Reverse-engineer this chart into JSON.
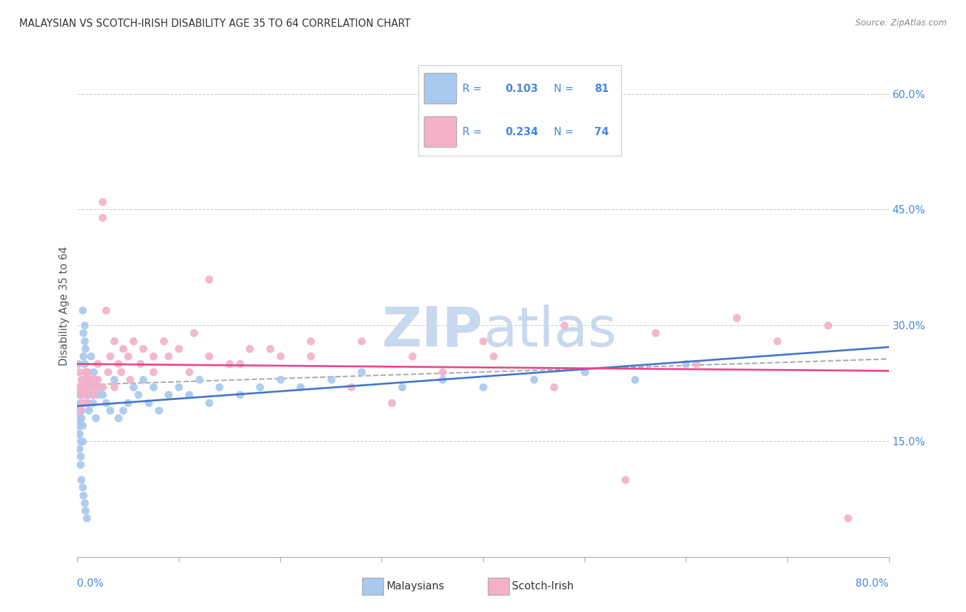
{
  "title": "MALAYSIAN VS SCOTCH-IRISH DISABILITY AGE 35 TO 64 CORRELATION CHART",
  "source": "Source: ZipAtlas.com",
  "ylabel": "Disability Age 35 to 64",
  "right_yticks": [
    0.15,
    0.3,
    0.45,
    0.6
  ],
  "right_yticklabels": [
    "15.0%",
    "30.0%",
    "45.0%",
    "60.0%"
  ],
  "malaysian_R": 0.103,
  "malaysian_N": 81,
  "scotch_irish_R": 0.234,
  "scotch_irish_N": 74,
  "blue_color": "#A8C8EE",
  "pink_color": "#F4B0C8",
  "blue_line_color": "#4477CC",
  "pink_line_color": "#EE4488",
  "dashed_line_color": "#AAAAAA",
  "legend_text_color": "#4488DD",
  "watermark_color": "#C8D8EE",
  "xmin": 0.0,
  "xmax": 0.8,
  "ymin": 0.0,
  "ymax": 0.65,
  "malaysian_x": [
    0.001,
    0.001,
    0.001,
    0.001,
    0.002,
    0.002,
    0.002,
    0.002,
    0.003,
    0.003,
    0.003,
    0.003,
    0.003,
    0.004,
    0.004,
    0.004,
    0.005,
    0.005,
    0.005,
    0.006,
    0.006,
    0.007,
    0.007,
    0.007,
    0.008,
    0.008,
    0.009,
    0.009,
    0.01,
    0.01,
    0.01,
    0.011,
    0.011,
    0.012,
    0.013,
    0.014,
    0.015,
    0.016,
    0.018,
    0.02,
    0.022,
    0.025,
    0.028,
    0.032,
    0.036,
    0.04,
    0.045,
    0.05,
    0.055,
    0.06,
    0.065,
    0.07,
    0.075,
    0.08,
    0.09,
    0.1,
    0.11,
    0.12,
    0.13,
    0.14,
    0.16,
    0.18,
    0.2,
    0.22,
    0.25,
    0.28,
    0.32,
    0.36,
    0.4,
    0.45,
    0.5,
    0.55,
    0.6,
    0.002,
    0.003,
    0.004,
    0.005,
    0.006,
    0.007,
    0.008,
    0.009
  ],
  "malaysian_y": [
    0.22,
    0.25,
    0.19,
    0.17,
    0.21,
    0.18,
    0.16,
    0.14,
    0.17,
    0.15,
    0.13,
    0.22,
    0.2,
    0.18,
    0.21,
    0.19,
    0.17,
    0.15,
    0.32,
    0.26,
    0.29,
    0.25,
    0.3,
    0.28,
    0.24,
    0.27,
    0.23,
    0.21,
    0.2,
    0.22,
    0.24,
    0.19,
    0.21,
    0.23,
    0.26,
    0.22,
    0.2,
    0.24,
    0.18,
    0.21,
    0.22,
    0.21,
    0.2,
    0.19,
    0.23,
    0.18,
    0.19,
    0.2,
    0.22,
    0.21,
    0.23,
    0.2,
    0.22,
    0.19,
    0.21,
    0.22,
    0.21,
    0.23,
    0.2,
    0.22,
    0.21,
    0.22,
    0.23,
    0.22,
    0.23,
    0.24,
    0.22,
    0.23,
    0.22,
    0.23,
    0.24,
    0.23,
    0.25,
    0.16,
    0.12,
    0.1,
    0.09,
    0.08,
    0.07,
    0.06,
    0.05
  ],
  "scotch_irish_x": [
    0.001,
    0.002,
    0.003,
    0.004,
    0.005,
    0.006,
    0.007,
    0.008,
    0.009,
    0.01,
    0.012,
    0.014,
    0.016,
    0.018,
    0.02,
    0.022,
    0.025,
    0.028,
    0.032,
    0.036,
    0.04,
    0.045,
    0.05,
    0.055,
    0.065,
    0.075,
    0.085,
    0.1,
    0.115,
    0.13,
    0.15,
    0.17,
    0.2,
    0.23,
    0.27,
    0.31,
    0.36,
    0.41,
    0.47,
    0.54,
    0.61,
    0.69,
    0.76,
    0.003,
    0.005,
    0.007,
    0.009,
    0.012,
    0.016,
    0.02,
    0.025,
    0.03,
    0.036,
    0.043,
    0.052,
    0.062,
    0.075,
    0.09,
    0.11,
    0.13,
    0.16,
    0.19,
    0.23,
    0.28,
    0.33,
    0.4,
    0.48,
    0.57,
    0.65,
    0.74,
    0.008,
    0.012,
    0.018,
    0.025
  ],
  "scotch_irish_y": [
    0.22,
    0.24,
    0.21,
    0.23,
    0.2,
    0.22,
    0.23,
    0.21,
    0.22,
    0.24,
    0.22,
    0.23,
    0.21,
    0.23,
    0.25,
    0.22,
    0.44,
    0.32,
    0.26,
    0.28,
    0.25,
    0.27,
    0.26,
    0.28,
    0.27,
    0.26,
    0.28,
    0.27,
    0.29,
    0.36,
    0.25,
    0.27,
    0.26,
    0.28,
    0.22,
    0.2,
    0.24,
    0.26,
    0.22,
    0.1,
    0.25,
    0.28,
    0.05,
    0.19,
    0.2,
    0.22,
    0.2,
    0.22,
    0.21,
    0.23,
    0.22,
    0.24,
    0.22,
    0.24,
    0.23,
    0.25,
    0.24,
    0.26,
    0.24,
    0.26,
    0.25,
    0.27,
    0.26,
    0.28,
    0.26,
    0.28,
    0.3,
    0.29,
    0.31,
    0.3,
    0.24,
    0.23,
    0.22,
    0.46
  ]
}
